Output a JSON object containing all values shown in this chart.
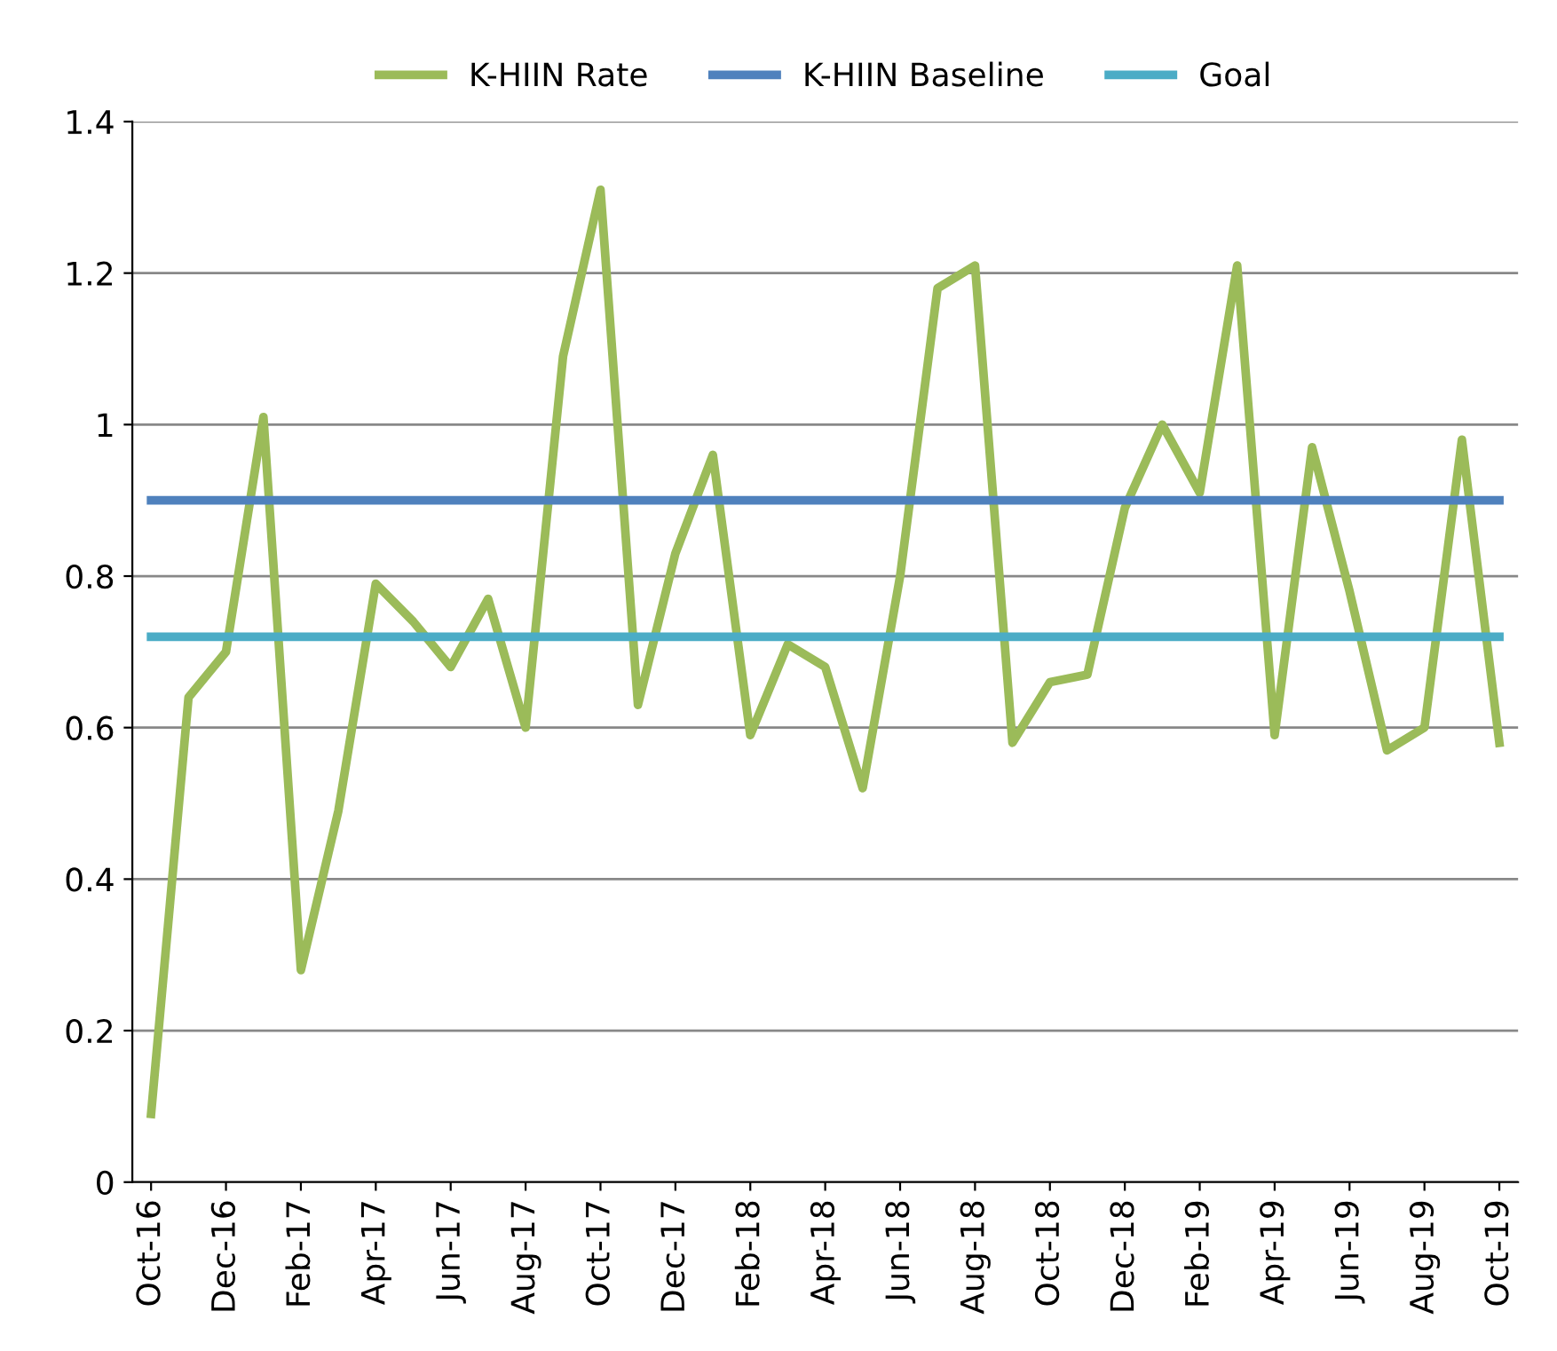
{
  "chart_data": {
    "type": "line",
    "categories": [
      "Oct-16",
      null,
      "Dec-16",
      null,
      "Feb-17",
      null,
      "Apr-17",
      null,
      "Jun-17",
      null,
      "Aug-17",
      null,
      "Oct-17",
      null,
      "Dec-17",
      null,
      "Feb-18",
      null,
      "Apr-18",
      null,
      "Jun-18",
      null,
      "Aug-18",
      null,
      "Oct-18",
      null,
      "Dec-18",
      null,
      "Feb-19",
      null,
      "Apr-19",
      null,
      "Jun-19",
      null,
      "Aug-19",
      null,
      "Oct-19"
    ],
    "series": [
      {
        "name": "K-HIIN Rate",
        "color": "#9bbb59",
        "values": [
          0.09,
          0.64,
          0.7,
          1.01,
          0.28,
          0.49,
          0.79,
          0.74,
          0.68,
          0.77,
          0.6,
          1.09,
          1.31,
          0.63,
          0.83,
          0.96,
          0.59,
          0.71,
          0.68,
          0.52,
          0.8,
          1.18,
          1.21,
          0.58,
          0.66,
          0.67,
          0.89,
          1.0,
          0.91,
          1.21,
          0.59,
          0.97,
          0.78,
          0.57,
          0.6,
          0.98,
          0.58
        ]
      },
      {
        "name": "K-HIIN Baseline",
        "color": "#4f81bd",
        "values": [
          0.9,
          0.9,
          0.9,
          0.9,
          0.9,
          0.9,
          0.9,
          0.9,
          0.9,
          0.9,
          0.9,
          0.9,
          0.9,
          0.9,
          0.9,
          0.9,
          0.9,
          0.9,
          0.9,
          0.9,
          0.9,
          0.9,
          0.9,
          0.9,
          0.9,
          0.9,
          0.9,
          0.9,
          0.9,
          0.9,
          0.9,
          0.9,
          0.9,
          0.9,
          0.9,
          0.9,
          0.9
        ]
      },
      {
        "name": "Goal",
        "color": "#4bacc6",
        "values": [
          0.72,
          0.72,
          0.72,
          0.72,
          0.72,
          0.72,
          0.72,
          0.72,
          0.72,
          0.72,
          0.72,
          0.72,
          0.72,
          0.72,
          0.72,
          0.72,
          0.72,
          0.72,
          0.72,
          0.72,
          0.72,
          0.72,
          0.72,
          0.72,
          0.72,
          0.72,
          0.72,
          0.72,
          0.72,
          0.72,
          0.72,
          0.72,
          0.72,
          0.72,
          0.72,
          0.72,
          0.72
        ]
      }
    ],
    "ylim": [
      0,
      1.4
    ],
    "yticks": [
      0,
      0.2,
      0.4,
      0.6,
      0.8,
      1,
      1.2,
      1.4
    ],
    "grid": "y",
    "legend": "top",
    "marker": "none",
    "line_style": "solid"
  }
}
